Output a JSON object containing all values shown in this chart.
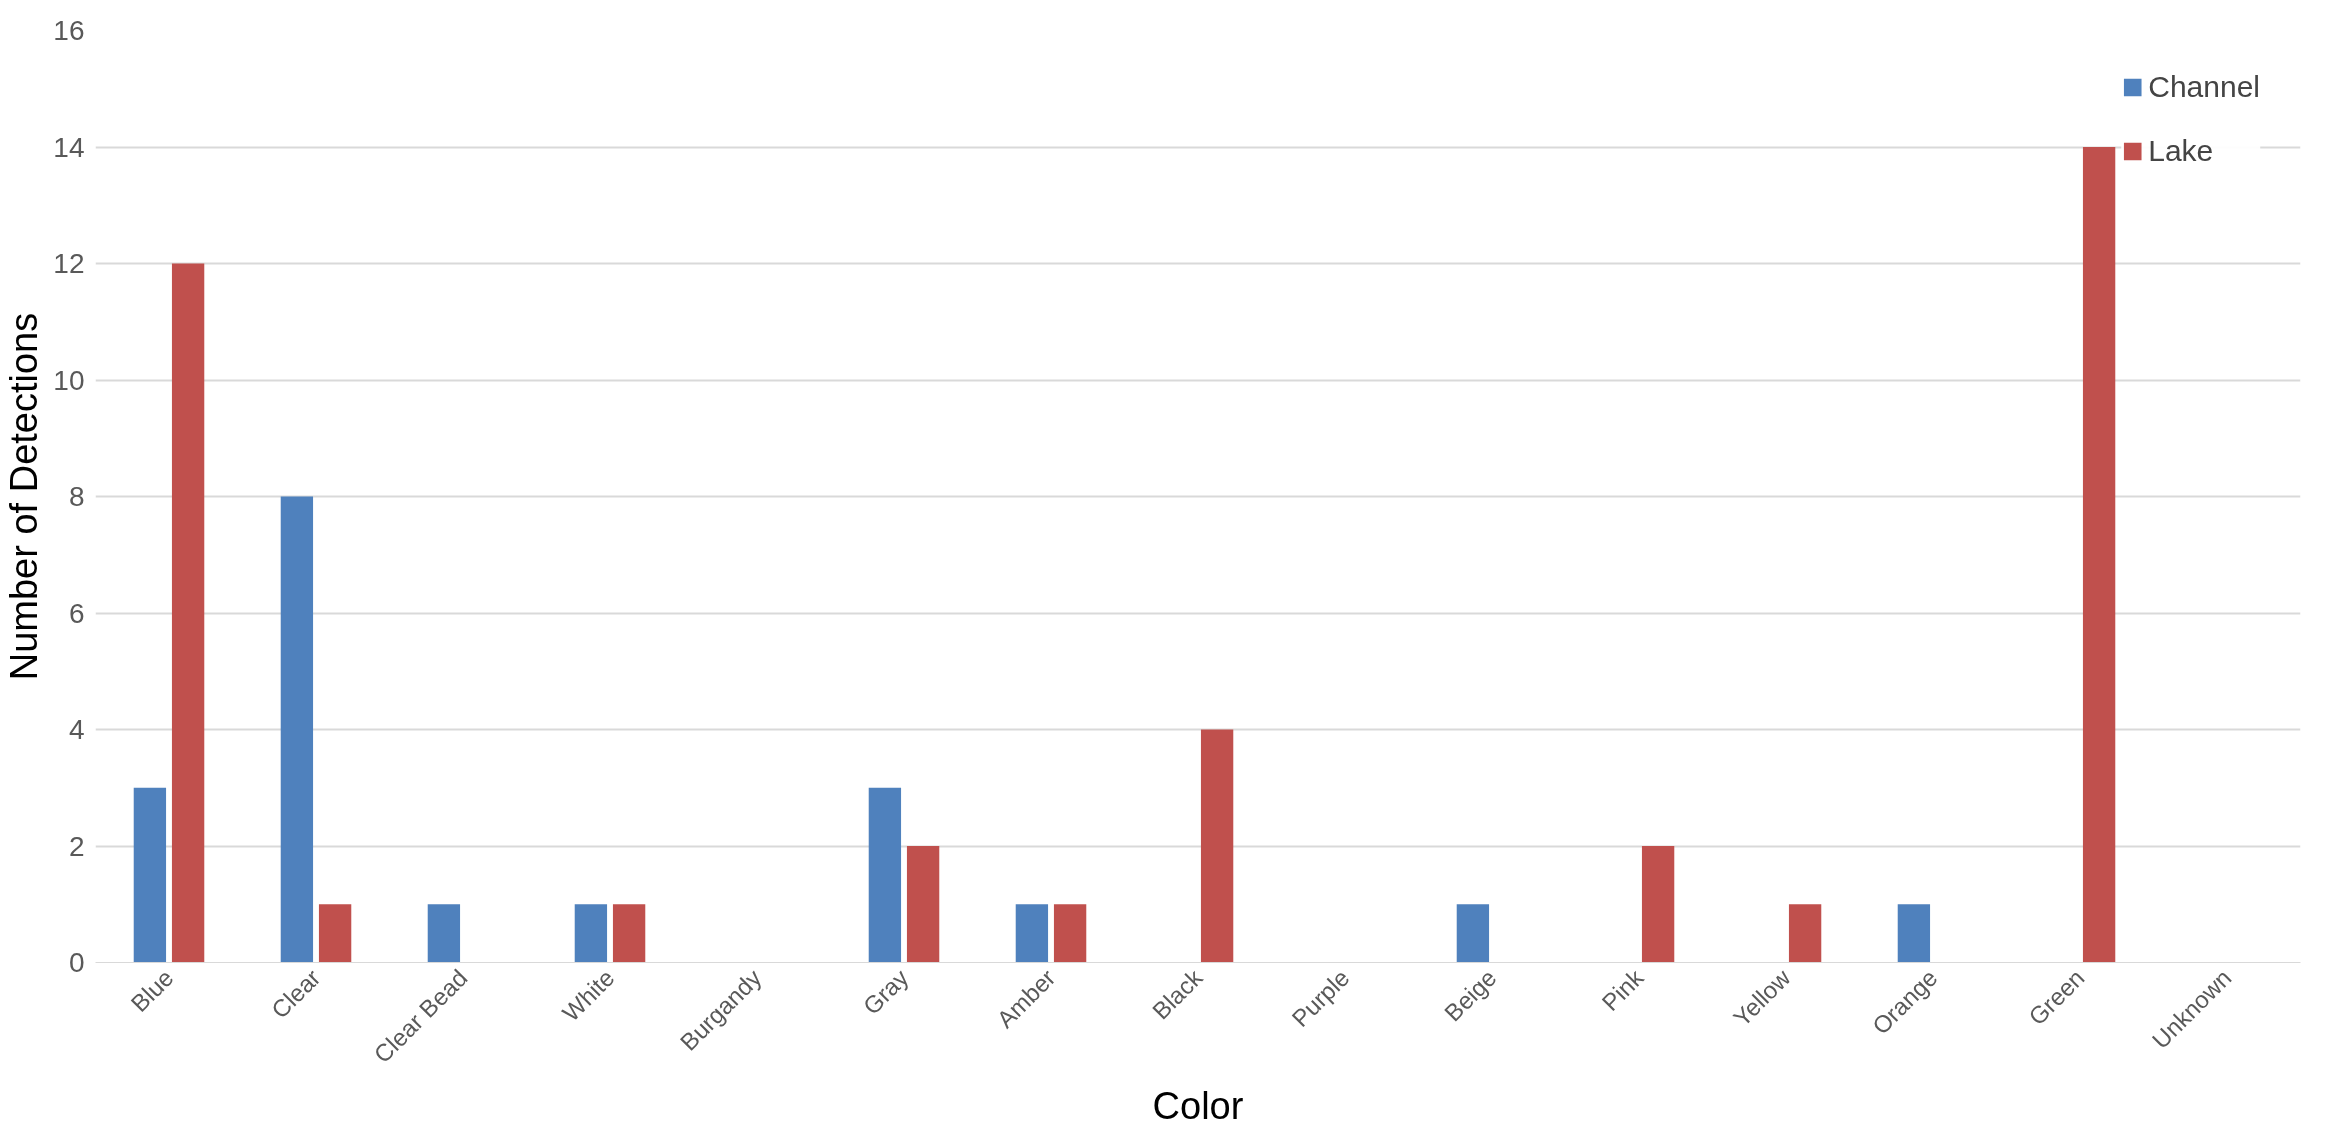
{
  "chart_data": {
    "type": "bar",
    "xlabel": "Color",
    "ylabel": "Number of Detections",
    "categories": [
      "Blue",
      "Clear",
      "Clear Bead",
      "White",
      "Burgandy",
      "Gray",
      "Amber",
      "Black",
      "Purple",
      "Beige",
      "Pink",
      "Yellow",
      "Orange",
      "Green",
      "Unknown"
    ],
    "series": [
      {
        "name": "Channel",
        "color": "#4f81bd",
        "values": [
          3,
          8,
          1,
          1,
          0,
          3,
          1,
          0,
          0,
          1,
          0,
          0,
          1,
          0,
          0
        ]
      },
      {
        "name": "Lake",
        "color": "#c0504d",
        "values": [
          12,
          1,
          0,
          1,
          0,
          2,
          1,
          4,
          0,
          0,
          2,
          1,
          0,
          14,
          0
        ]
      }
    ],
    "ylim": [
      0,
      16
    ],
    "yticks": [
      0,
      2,
      4,
      6,
      8,
      10,
      12,
      14,
      16
    ],
    "grid": "y",
    "legend": "top right"
  }
}
